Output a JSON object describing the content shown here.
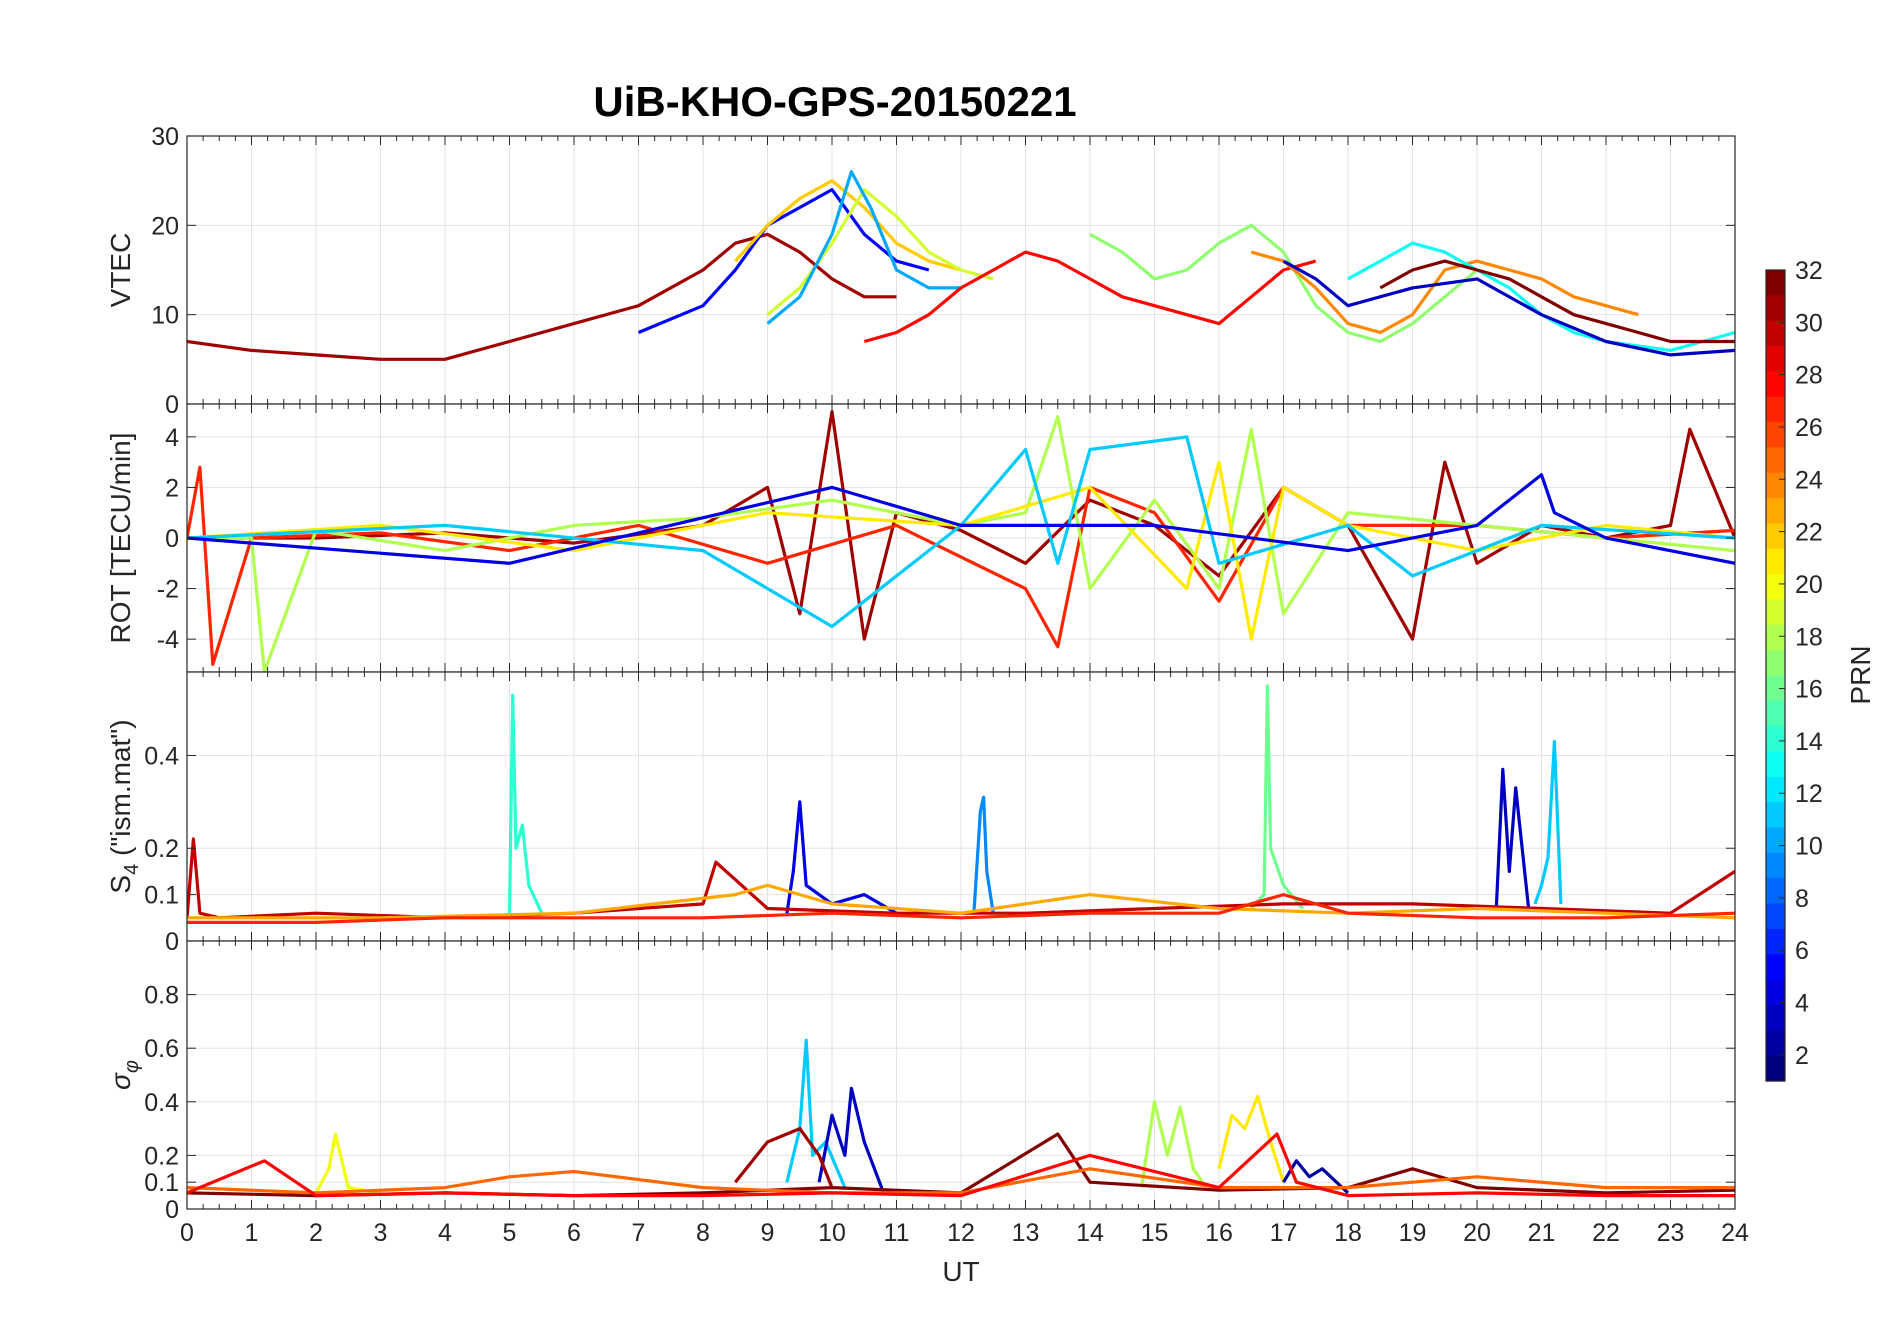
{
  "title": "UiB-KHO-GPS-20150221",
  "colorbar": {
    "label": "PRN",
    "ticks": [
      2,
      4,
      6,
      8,
      10,
      12,
      14,
      16,
      18,
      20,
      22,
      24,
      26,
      28,
      30,
      32
    ],
    "range": [
      1,
      32
    ],
    "colormap": "jet"
  },
  "chart_data": [
    {
      "type": "line",
      "panel": "vtec",
      "ylabel": "VTEC",
      "xlabel": "",
      "xlim": [
        0,
        24
      ],
      "ylim": [
        0,
        30
      ],
      "yticks": [
        0,
        10,
        20,
        30
      ],
      "grid": true,
      "series": [
        {
          "prn": 31,
          "x": [
            0,
            1,
            2,
            3,
            4,
            5,
            6,
            7,
            8,
            8.5,
            9,
            9.5,
            10,
            10.5,
            11
          ],
          "y": [
            7,
            6,
            5.5,
            5,
            5,
            7,
            9,
            11,
            15,
            18,
            19,
            17,
            14,
            12,
            12
          ]
        },
        {
          "prn": 5,
          "x": [
            7,
            8,
            8.5,
            9,
            9.5,
            10,
            10.5,
            11,
            11.5
          ],
          "y": [
            8,
            11,
            15,
            20,
            22,
            24,
            19,
            16,
            15
          ]
        },
        {
          "prn": 22,
          "x": [
            8.5,
            9,
            9.5,
            10,
            10.5,
            11,
            11.5,
            12
          ],
          "y": [
            16,
            20,
            23,
            25,
            22,
            18,
            16,
            15
          ]
        },
        {
          "prn": 19,
          "x": [
            9,
            9.5,
            10,
            10.5,
            11,
            11.5,
            12,
            12.5
          ],
          "y": [
            10,
            13,
            18,
            24,
            21,
            17,
            15,
            14
          ]
        },
        {
          "prn": 10,
          "x": [
            9,
            9.5,
            10,
            10.3,
            10.6,
            11,
            11.5,
            12
          ],
          "y": [
            9,
            12,
            19,
            26,
            22,
            15,
            13,
            13
          ]
        },
        {
          "prn": 28,
          "x": [
            10.5,
            11,
            11.5,
            12,
            12.5,
            13,
            13.5,
            14,
            14.5,
            15,
            15.5,
            16,
            16.5,
            17,
            17.5
          ],
          "y": [
            7,
            8,
            10,
            13,
            15,
            17,
            16,
            14,
            12,
            11,
            10,
            9,
            12,
            15,
            16
          ]
        },
        {
          "prn": 17,
          "x": [
            14,
            14.5,
            15,
            15.5,
            16,
            16.5,
            17,
            17.5,
            18,
            18.5,
            19,
            19.5,
            20
          ],
          "y": [
            19,
            17,
            14,
            15,
            18,
            20,
            17,
            11,
            8,
            7,
            9,
            12,
            15
          ]
        },
        {
          "prn": 24,
          "x": [
            16.5,
            17,
            17.5,
            18,
            18.5,
            19,
            19.5,
            20,
            20.5,
            21,
            21.5,
            22,
            22.5
          ],
          "y": [
            17,
            16,
            13,
            9,
            8,
            10,
            15,
            16,
            15,
            14,
            12,
            11,
            10
          ]
        },
        {
          "prn": 13,
          "x": [
            18,
            18.5,
            19,
            19.5,
            20,
            20.5,
            21,
            21.5,
            22,
            22.5,
            23,
            23.5,
            24
          ],
          "y": [
            14,
            16,
            18,
            17,
            15,
            13,
            10,
            8,
            7,
            6.5,
            6,
            7,
            8
          ]
        },
        {
          "prn": 3,
          "x": [
            17,
            17.5,
            18,
            19,
            20,
            21,
            22,
            23,
            24
          ],
          "y": [
            16,
            14,
            11,
            13,
            14,
            10,
            7,
            5.5,
            6
          ]
        },
        {
          "prn": 32,
          "x": [
            18.5,
            19,
            19.5,
            20,
            20.5,
            21,
            21.5,
            22,
            22.5,
            23,
            23.5,
            24
          ],
          "y": [
            13,
            15,
            16,
            15,
            14,
            12,
            10,
            9,
            8,
            7,
            7,
            7
          ]
        }
      ]
    },
    {
      "type": "line",
      "panel": "rot",
      "ylabel": "ROT [TECU/min]",
      "xlabel": "",
      "xlim": [
        0,
        24
      ],
      "ylim": [
        -5.3,
        5.3
      ],
      "yticks": [
        -4,
        -2,
        0,
        2,
        4
      ],
      "grid": true,
      "series": [
        {
          "prn": 31,
          "x": [
            0,
            2,
            4,
            6,
            8,
            9,
            9.5,
            10,
            10.5,
            11,
            12,
            13,
            14,
            15,
            16,
            17,
            18,
            19,
            19.5,
            20,
            21,
            22,
            23,
            23.3,
            24
          ],
          "y": [
            0,
            0,
            0.2,
            -0.2,
            0.5,
            2,
            -3,
            5,
            -4,
            1,
            0.3,
            -1,
            1.5,
            0.5,
            -1.5,
            2,
            0.5,
            -4,
            3,
            -1,
            0.5,
            0,
            0.5,
            4.3,
            0
          ]
        },
        {
          "prn": 27,
          "x": [
            0,
            0.2,
            0.4,
            1,
            3,
            5,
            7,
            9,
            11,
            13,
            13.5,
            14,
            15,
            16,
            17,
            18,
            20,
            22,
            24
          ],
          "y": [
            0,
            2.8,
            -5,
            0,
            0.2,
            -0.5,
            0.5,
            -1,
            0.5,
            -2,
            -4.3,
            2,
            1,
            -2.5,
            2,
            0.5,
            0.5,
            0,
            0.3
          ]
        },
        {
          "prn": 18,
          "x": [
            0,
            1,
            1.2,
            2,
            4,
            6,
            8,
            10,
            12,
            13,
            13.5,
            14,
            15,
            16,
            16.5,
            17,
            18,
            20,
            22,
            24
          ],
          "y": [
            0,
            0,
            -5.3,
            0.3,
            -0.5,
            0.5,
            0.8,
            1.5,
            0.5,
            1,
            4.8,
            -2,
            1.5,
            -2,
            4.3,
            -3,
            1,
            0.5,
            0,
            -0.5
          ]
        },
        {
          "prn": 21,
          "x": [
            0,
            3,
            6,
            9,
            12,
            14,
            15.5,
            16,
            16.5,
            17,
            18,
            20,
            22,
            24
          ],
          "y": [
            0,
            0.5,
            -0.5,
            1,
            0.5,
            2,
            -2,
            3,
            -4,
            2,
            0.5,
            -0.5,
            0.5,
            0
          ]
        },
        {
          "prn": 11,
          "x": [
            0,
            4,
            8,
            10,
            12,
            13,
            13.5,
            14,
            15.5,
            16,
            18,
            19,
            21,
            24
          ],
          "y": [
            0,
            0.5,
            -0.5,
            -3.5,
            0.5,
            3.5,
            -1,
            3.5,
            4,
            -1,
            0.5,
            -1.5,
            0.5,
            0
          ]
        },
        {
          "prn": 4,
          "x": [
            0,
            5,
            10,
            12,
            15,
            18,
            20,
            21,
            21.2,
            22,
            24
          ],
          "y": [
            0,
            -1,
            2,
            0.5,
            0.5,
            -0.5,
            0.5,
            2.5,
            1,
            0,
            -1
          ]
        }
      ]
    },
    {
      "type": "line",
      "panel": "s4",
      "ylabel": "S4 (\"ism.mat\")",
      "xlabel": "",
      "xlim": [
        0,
        24
      ],
      "ylim": [
        0,
        0.58
      ],
      "yticks": [
        0,
        0.1,
        0.2,
        0.4
      ],
      "ytick_labels": [
        "0",
        "0.1",
        "0.2",
        "0.4"
      ],
      "grid": true,
      "series": [
        {
          "prn": 14,
          "x": [
            5,
            5.05,
            5.1,
            5.2,
            5.3,
            5.5
          ],
          "y": [
            0.06,
            0.53,
            0.2,
            0.25,
            0.12,
            0.06
          ]
        },
        {
          "prn": 4,
          "x": [
            9.3,
            9.4,
            9.5,
            9.6,
            10,
            10.5,
            11
          ],
          "y": [
            0.06,
            0.15,
            0.3,
            0.12,
            0.08,
            0.1,
            0.06
          ]
        },
        {
          "prn": 9,
          "x": [
            12.2,
            12.3,
            12.35,
            12.4,
            12.5
          ],
          "y": [
            0.06,
            0.28,
            0.31,
            0.15,
            0.06
          ]
        },
        {
          "prn": 16,
          "x": [
            16.5,
            16.7,
            16.75,
            16.8,
            17,
            17.3
          ],
          "y": [
            0.07,
            0.1,
            0.55,
            0.2,
            0.12,
            0.07
          ]
        },
        {
          "prn": 3,
          "x": [
            20.3,
            20.4,
            20.5,
            20.6,
            20.8
          ],
          "y": [
            0.07,
            0.37,
            0.15,
            0.33,
            0.07
          ]
        },
        {
          "prn": 11,
          "x": [
            20.9,
            21,
            21.1,
            21.2,
            21.3
          ],
          "y": [
            0.08,
            0.12,
            0.18,
            0.43,
            0.08
          ]
        },
        {
          "prn": 30,
          "x": [
            0,
            0.1,
            0.2,
            0.5,
            2,
            4,
            6,
            8,
            8.2,
            9,
            11,
            13,
            15,
            17,
            19,
            21,
            23,
            24
          ],
          "y": [
            0.05,
            0.22,
            0.06,
            0.05,
            0.06,
            0.05,
            0.06,
            0.08,
            0.17,
            0.07,
            0.06,
            0.06,
            0.07,
            0.08,
            0.08,
            0.07,
            0.06,
            0.15
          ]
        },
        {
          "prn": 23,
          "x": [
            0,
            3,
            6,
            8.5,
            9,
            10,
            12,
            14,
            16,
            18,
            20,
            22,
            24
          ],
          "y": [
            0.05,
            0.05,
            0.06,
            0.1,
            0.12,
            0.08,
            0.06,
            0.1,
            0.07,
            0.06,
            0.07,
            0.06,
            0.05
          ]
        },
        {
          "prn": 27,
          "x": [
            0,
            2,
            4,
            6,
            8,
            10,
            12,
            14,
            16,
            17,
            18,
            20,
            22,
            24
          ],
          "y": [
            0.04,
            0.04,
            0.05,
            0.05,
            0.05,
            0.06,
            0.05,
            0.06,
            0.06,
            0.1,
            0.06,
            0.05,
            0.05,
            0.06
          ]
        }
      ]
    },
    {
      "type": "line",
      "panel": "sigma_phi",
      "ylabel": "σφ",
      "xlabel": "UT",
      "xlim": [
        0,
        24
      ],
      "ylim": [
        0,
        1
      ],
      "yticks": [
        0,
        0.1,
        0.2,
        0.4,
        0.6,
        0.8
      ],
      "ytick_labels": [
        "0",
        "0.1",
        "0.2",
        "0.4",
        "0.6",
        "0.8"
      ],
      "xticks": [
        0,
        1,
        2,
        3,
        4,
        5,
        6,
        7,
        8,
        9,
        10,
        11,
        12,
        13,
        14,
        15,
        16,
        17,
        18,
        19,
        20,
        21,
        22,
        23,
        24
      ],
      "grid": true,
      "series": [
        {
          "prn": 11,
          "x": [
            9.3,
            9.5,
            9.6,
            9.7,
            9.9,
            10.2
          ],
          "y": [
            0.1,
            0.3,
            0.63,
            0.2,
            0.25,
            0.08
          ]
        },
        {
          "prn": 3,
          "x": [
            9.8,
            10,
            10.2,
            10.3,
            10.5,
            10.8
          ],
          "y": [
            0.1,
            0.35,
            0.2,
            0.45,
            0.25,
            0.06
          ]
        },
        {
          "prn": 31,
          "x": [
            8.5,
            9,
            9.5,
            9.8,
            10
          ],
          "y": [
            0.1,
            0.25,
            0.3,
            0.2,
            0.08
          ]
        },
        {
          "prn": 21,
          "x": [
            16,
            16.2,
            16.4,
            16.6,
            16.8,
            17
          ],
          "y": [
            0.15,
            0.35,
            0.3,
            0.42,
            0.25,
            0.1
          ]
        },
        {
          "prn": 18,
          "x": [
            14.8,
            15,
            15.2,
            15.4,
            15.6,
            15.8
          ],
          "y": [
            0.08,
            0.4,
            0.2,
            0.38,
            0.15,
            0.08
          ]
        },
        {
          "prn": 2,
          "x": [
            17,
            17.2,
            17.4,
            17.6,
            18
          ],
          "y": [
            0.1,
            0.18,
            0.12,
            0.15,
            0.06
          ]
        },
        {
          "prn": 20,
          "x": [
            2,
            2.2,
            2.3,
            2.5,
            3
          ],
          "y": [
            0.06,
            0.15,
            0.28,
            0.08,
            0.06
          ]
        },
        {
          "prn": 32,
          "x": [
            0,
            2,
            4,
            6,
            8,
            10,
            12,
            13.5,
            14,
            16,
            18,
            19,
            20,
            22,
            24
          ],
          "y": [
            0.06,
            0.05,
            0.06,
            0.05,
            0.06,
            0.08,
            0.06,
            0.28,
            0.1,
            0.07,
            0.08,
            0.15,
            0.08,
            0.06,
            0.07
          ]
        },
        {
          "prn": 25,
          "x": [
            0,
            2,
            4,
            5,
            6,
            8,
            10,
            12,
            14,
            16,
            18,
            20,
            22,
            24
          ],
          "y": [
            0.08,
            0.06,
            0.08,
            0.12,
            0.14,
            0.08,
            0.06,
            0.06,
            0.15,
            0.08,
            0.08,
            0.12,
            0.08,
            0.08
          ]
        },
        {
          "prn": 28,
          "x": [
            0,
            1.2,
            2,
            4,
            6,
            8,
            10,
            12,
            14,
            16,
            16.9,
            17.2,
            18,
            20,
            22,
            24
          ],
          "y": [
            0.06,
            0.18,
            0.05,
            0.06,
            0.05,
            0.05,
            0.06,
            0.05,
            0.2,
            0.08,
            0.28,
            0.1,
            0.05,
            0.06,
            0.05,
            0.05
          ]
        }
      ]
    }
  ]
}
